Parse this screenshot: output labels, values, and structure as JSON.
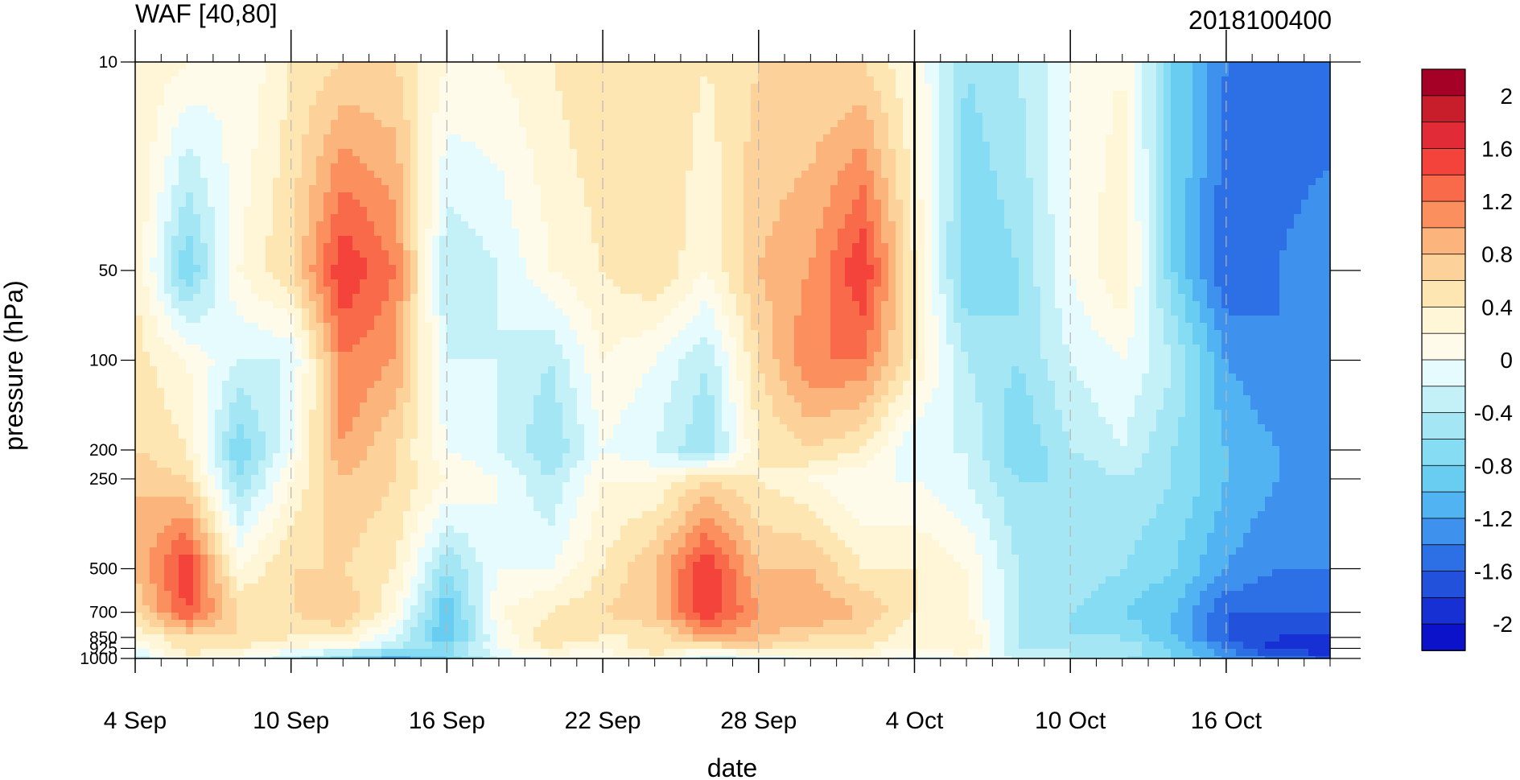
{
  "chart_data": {
    "type": "heatmap",
    "title": "WAF [40,80]",
    "title_right": "2018100400",
    "xlabel": "date",
    "ylabel": "pressure (hPa)",
    "x_ticks": [
      "4 Sep",
      "10 Sep",
      "16 Sep",
      "22 Sep",
      "28 Sep",
      "4 Oct",
      "10 Oct",
      "16 Oct"
    ],
    "x_range": [
      "4 Sep",
      "20 Oct"
    ],
    "marker_date": "4 Oct",
    "y_levels": [
      1000,
      925,
      850,
      700,
      500,
      250,
      200,
      100,
      50,
      10
    ],
    "y_tick_labels": [
      "1000",
      "925",
      "850",
      "700",
      "500",
      "250",
      "200",
      "100",
      "50",
      "10"
    ],
    "y_scale": "log",
    "y_range": [
      1000,
      10
    ],
    "colorbar": {
      "labels": [
        "2",
        "1.6",
        "1.2",
        "0.8",
        "0.4",
        "0",
        "-0.4",
        "-0.8",
        "-1.2",
        "-1.6",
        "-2"
      ],
      "colors": [
        "#a50026",
        "#c81e2c",
        "#e12b36",
        "#f4433a",
        "#f86a4a",
        "#fb8f5e",
        "#fbb57c",
        "#fcd19a",
        "#fde6b2",
        "#fef6d6",
        "#fffbea",
        "#e6fbfd",
        "#c4f0f7",
        "#a5e6f4",
        "#86dcf2",
        "#68cdf0",
        "#52b3f2",
        "#3e92ee",
        "#2d6fe5",
        "#2251dc",
        "#1730d3",
        "#0c12c9"
      ],
      "contour_interval": 0.2,
      "range": [
        -2.2,
        2.2
      ]
    },
    "grid": false,
    "waf_matrix_note": "values sampled every 2 days (4 Sep to 20 Oct) at each pressure level from 1000 to 10 hPa",
    "waf_values": [
      [
        -0.4,
        0.0,
        0.2,
        0.6,
        0.8,
        0.8,
        0.6,
        0.5,
        0.4,
        0.4
      ],
      [
        0.2,
        0.6,
        0.6,
        1.4,
        1.6,
        0.6,
        0.4,
        0.2,
        -0.8,
        0.2
      ],
      [
        0.0,
        0.4,
        0.6,
        0.6,
        0.2,
        -0.6,
        -0.8,
        -0.2,
        0.2,
        0.0
      ],
      [
        -0.4,
        0.2,
        0.4,
        0.6,
        0.6,
        0.2,
        0.0,
        -0.2,
        0.6,
        0.4
      ],
      [
        -0.8,
        0.0,
        0.4,
        0.8,
        0.6,
        0.8,
        1.0,
        1.2,
        1.6,
        0.6
      ],
      [
        -1.2,
        -0.4,
        -0.2,
        0.2,
        0.4,
        0.6,
        0.6,
        1.0,
        1.2,
        0.6
      ],
      [
        -0.8,
        -0.6,
        -1.0,
        -1.0,
        -0.6,
        0.2,
        0.0,
        -0.2,
        -0.4,
        0.2
      ],
      [
        -0.2,
        0.0,
        0.0,
        0.2,
        0.0,
        0.0,
        -0.2,
        -0.2,
        -0.2,
        0.2
      ],
      [
        0.0,
        0.4,
        0.6,
        0.4,
        0.0,
        -0.4,
        -0.6,
        -0.4,
        0.2,
        0.4
      ],
      [
        0.0,
        0.2,
        0.4,
        0.6,
        0.4,
        0.2,
        0.0,
        0.2,
        0.4,
        0.6
      ],
      [
        0.2,
        0.6,
        0.4,
        0.8,
        0.8,
        0.2,
        -0.2,
        0.0,
        0.6,
        0.6
      ],
      [
        -0.4,
        0.4,
        1.0,
        1.6,
        1.6,
        0.6,
        -0.6,
        -0.4,
        0.2,
        0.4
      ],
      [
        -0.2,
        0.6,
        0.8,
        1.0,
        0.8,
        0.4,
        0.4,
        0.6,
        0.8,
        0.6
      ],
      [
        0.0,
        0.4,
        0.6,
        1.0,
        0.8,
        0.2,
        0.6,
        1.2,
        1.0,
        0.6
      ],
      [
        0.2,
        0.4,
        0.6,
        0.8,
        0.4,
        0.0,
        0.4,
        1.2,
        1.6,
        0.6
      ],
      [
        -0.2,
        0.2,
        0.2,
        0.4,
        0.4,
        0.0,
        -0.2,
        0.4,
        0.4,
        0.2
      ],
      [
        0.0,
        0.4,
        0.4,
        0.2,
        0.2,
        -0.2,
        -0.2,
        -0.4,
        -0.8,
        -0.6
      ],
      [
        -0.2,
        -0.4,
        -0.4,
        -0.4,
        -0.4,
        -0.6,
        -0.8,
        -0.6,
        -0.6,
        -0.4
      ],
      [
        -0.4,
        -0.4,
        -0.6,
        -0.6,
        -0.4,
        -0.6,
        -0.4,
        -0.2,
        0.0,
        0.0
      ],
      [
        -0.6,
        -0.4,
        -0.6,
        -0.8,
        -0.6,
        -0.4,
        -0.2,
        0.0,
        0.4,
        0.2
      ],
      [
        -0.8,
        -0.8,
        -1.0,
        -1.0,
        -0.8,
        -0.6,
        -0.6,
        -0.4,
        -0.8,
        -0.8
      ],
      [
        -1.2,
        -1.4,
        -1.6,
        -1.6,
        -1.2,
        -1.0,
        -1.0,
        -1.2,
        -1.6,
        -1.4
      ],
      [
        -1.4,
        -2.0,
        -1.8,
        -1.6,
        -1.4,
        -1.2,
        -1.2,
        -1.4,
        -1.4,
        -1.6
      ],
      [
        -1.6,
        -2.0,
        -1.8,
        -1.6,
        -1.4,
        -1.2,
        -1.2,
        -1.2,
        -1.2,
        -1.6
      ]
    ]
  }
}
